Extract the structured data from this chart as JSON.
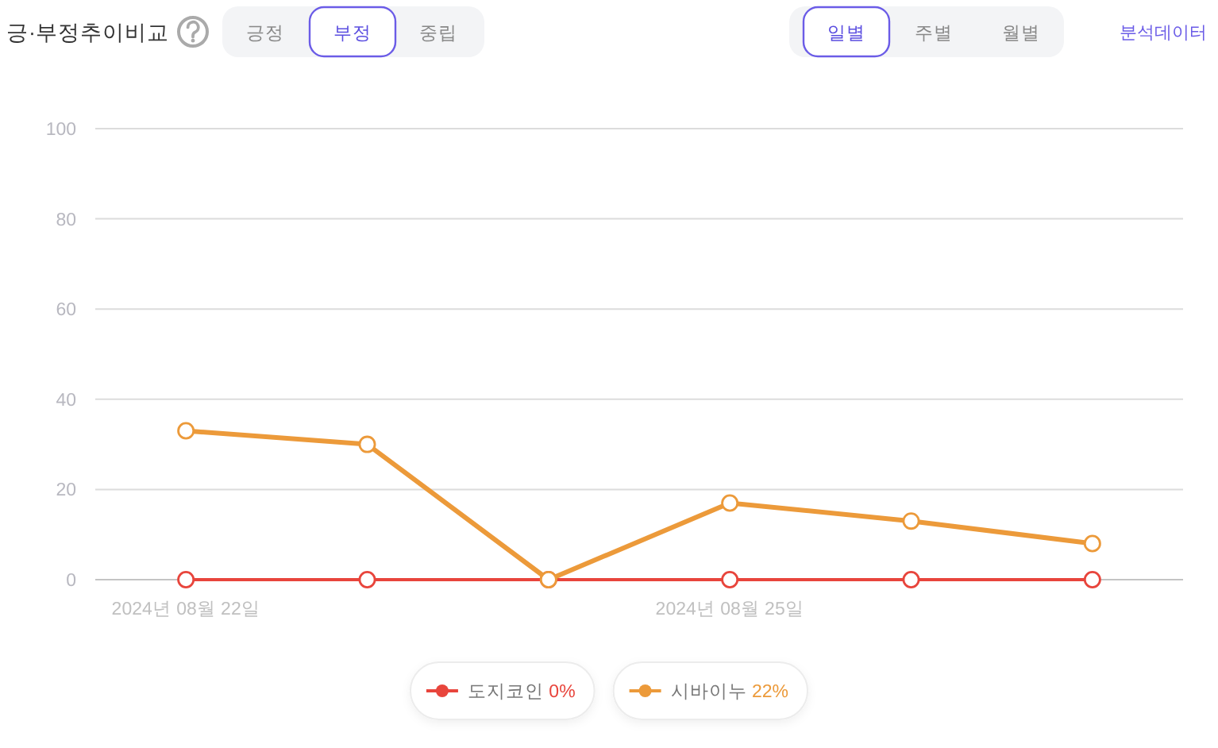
{
  "chart_data": {
    "type": "line",
    "title": "긍·부정추이비교",
    "annotations": [
      "긍정",
      "부정",
      "중립",
      "일별",
      "주별",
      "월별",
      "분석데이터"
    ],
    "categories": [
      "2024년 08월 22일",
      null,
      null,
      "2024년 08월 25일",
      null,
      null
    ],
    "series": [
      {
        "name": "도지코인 0%",
        "color": "#e8453c",
        "values": [
          0,
          0,
          0,
          0,
          0,
          0
        ]
      },
      {
        "name": "시바이누 22%",
        "color": "#ec9a3a",
        "values": [
          33,
          30,
          0,
          17,
          13,
          8
        ]
      }
    ],
    "ylim": [
      0,
      100
    ],
    "yticks": [
      0,
      20,
      40,
      60,
      80,
      100
    ],
    "grid": "y",
    "legend": "bottom",
    "marker": "circle",
    "line_style": "solid"
  }
}
